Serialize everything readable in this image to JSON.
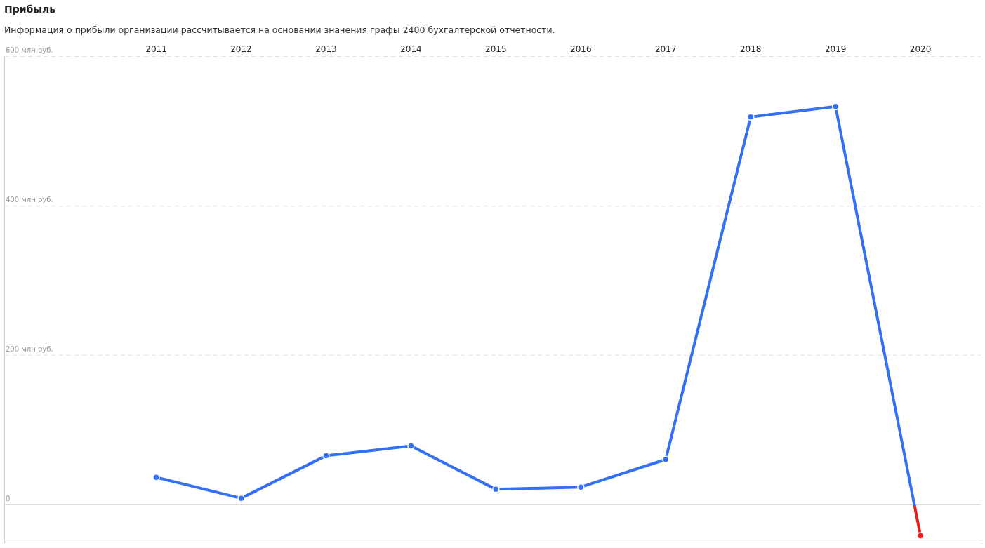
{
  "chart_data": {
    "type": "line",
    "title": "Прибыль",
    "subtitle": "Информация о прибыли организации рассчитывается на основании значения графы 2400 бухгалтерской отчетности.",
    "categories": [
      "2011",
      "2012",
      "2013",
      "2014",
      "2015",
      "2016",
      "2017",
      "2018",
      "2019",
      "2020"
    ],
    "series": [
      {
        "color": "#3370f5",
        "colors": [
          "#3370f5",
          "#3370f5",
          "#3370f5",
          "#3370f5",
          "#3370f5",
          "#3370f5",
          "#3370f5",
          "#3370f5",
          "#3370f5",
          "#f01c1c"
        ],
        "values": [
          37,
          9,
          66,
          79,
          21,
          24,
          61,
          519,
          533,
          -41
        ]
      }
    ],
    "ylim": [
      -50,
      600
    ],
    "yticks": [
      {
        "value": 0,
        "label": "0"
      },
      {
        "value": 200,
        "label": "200 млн руб."
      },
      {
        "value": 400,
        "label": "400 млн руб."
      },
      {
        "value": 600,
        "label": "600 млн руб."
      }
    ],
    "grid": "y",
    "legend": false,
    "marker": "circle",
    "line_style": "solid"
  }
}
